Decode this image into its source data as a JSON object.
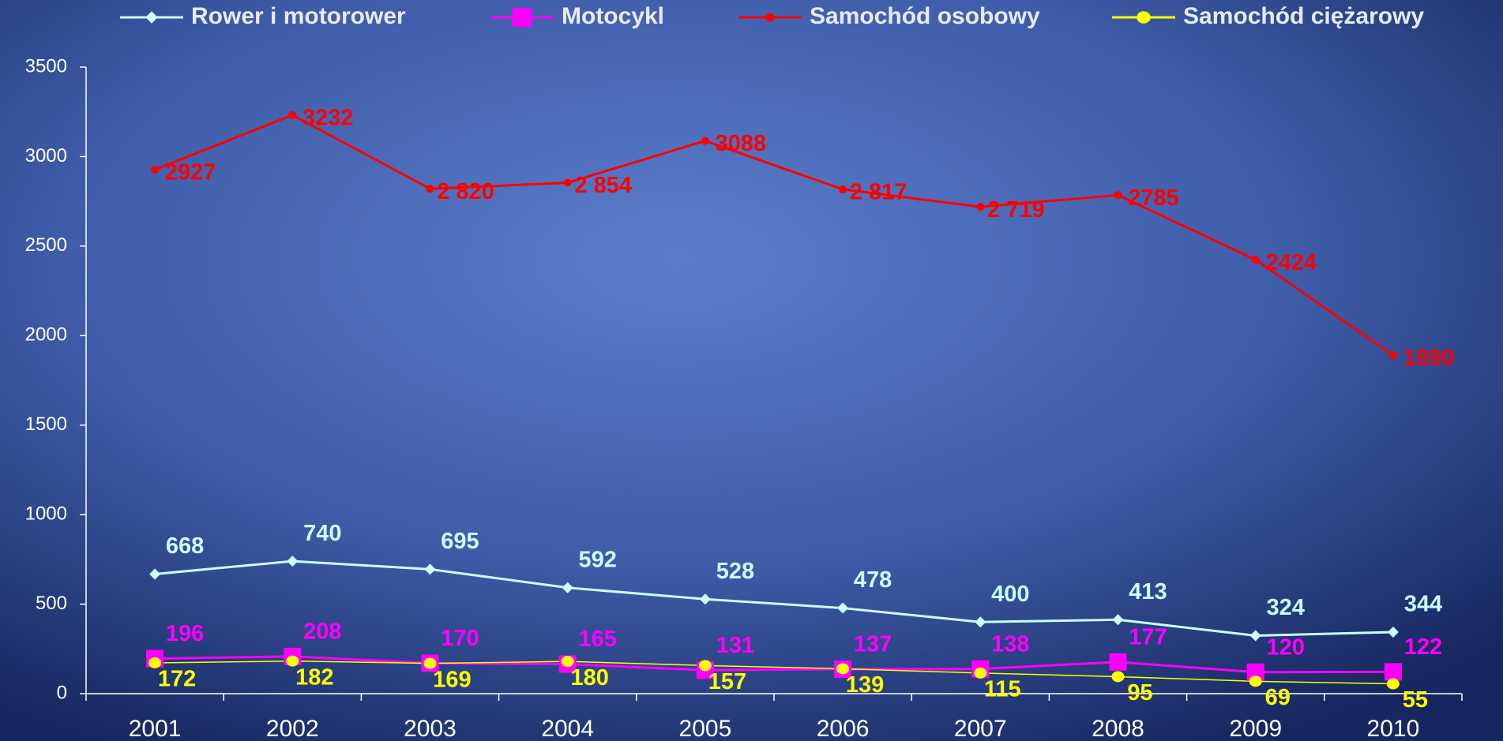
{
  "chart_data": {
    "type": "line",
    "categories": [
      "2001",
      "2002",
      "2003",
      "2004",
      "2005",
      "2006",
      "2007",
      "2008",
      "2009",
      "2010"
    ],
    "series": [
      {
        "name": "Rower i motorower",
        "color": "#ccffff",
        "marker": "diamond",
        "values": [
          668,
          740,
          695,
          592,
          528,
          478,
          400,
          413,
          324,
          344
        ]
      },
      {
        "name": "Motocykl",
        "color": "#ff00ff",
        "marker": "square",
        "values": [
          196,
          208,
          170,
          165,
          131,
          137,
          138,
          177,
          120,
          122
        ]
      },
      {
        "name": "Samochód osobowy",
        "color": "#ff0000",
        "marker": "circle",
        "values": [
          2927,
          3232,
          2820,
          2854,
          3088,
          2817,
          2719,
          2785,
          2424,
          1890
        ],
        "value_labels": [
          "2927",
          "3232",
          "2 820",
          "2 854",
          "3088",
          "2 817",
          "2 719",
          "2785",
          "2424",
          "1890"
        ]
      },
      {
        "name": "Samochód ciężarowy",
        "color": "#ffff00",
        "marker": "ellipse",
        "values": [
          172,
          182,
          169,
          180,
          157,
          139,
          115,
          95,
          69,
          55
        ]
      }
    ],
    "ylim": [
      0,
      3500
    ],
    "yticks": [
      0,
      500,
      1000,
      1500,
      2000,
      2500,
      3000,
      3500
    ],
    "legend": "top"
  }
}
